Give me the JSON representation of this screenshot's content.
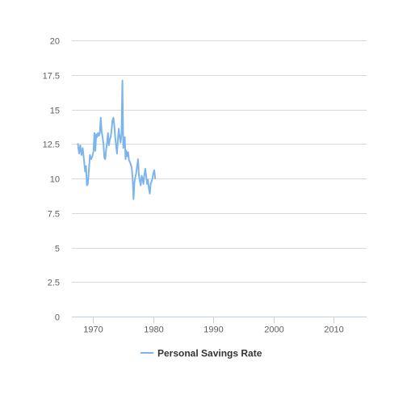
{
  "chart_data": {
    "type": "line",
    "title": "",
    "xlabel": "",
    "ylabel": "",
    "xlim": [
      1966.5,
      2015.5
    ],
    "ylim": [
      0,
      20
    ],
    "yticks": [
      0,
      2.5,
      5,
      7.5,
      10,
      12.5,
      15,
      17.5,
      20
    ],
    "ytick_labels": [
      "0",
      "2.5",
      "5",
      "7.5",
      "10",
      "12.5",
      "15",
      "17.5",
      "20"
    ],
    "xticks": [
      1970,
      1980,
      1990,
      2000,
      2010
    ],
    "xtick_labels": [
      "1970",
      "1980",
      "1990",
      "2000",
      "2010"
    ],
    "grid": true,
    "legend_position": "bottom-center",
    "series": [
      {
        "name": "Personal Savings Rate",
        "color": "#7cb5ec",
        "x": [
          1967.5,
          1967.7,
          1967.9,
          1968.1,
          1968.3,
          1968.5,
          1968.7,
          1968.85,
          1969.0,
          1969.15,
          1969.3,
          1969.5,
          1969.7,
          1969.9,
          1970.1,
          1970.25,
          1970.4,
          1970.55,
          1970.7,
          1970.85,
          1971.0,
          1971.15,
          1971.3,
          1971.45,
          1971.6,
          1971.75,
          1971.9,
          1972.05,
          1972.2,
          1972.35,
          1972.5,
          1972.65,
          1972.8,
          1972.95,
          1973.1,
          1973.25,
          1973.4,
          1973.55,
          1973.7,
          1973.85,
          1974.0,
          1974.15,
          1974.3,
          1974.45,
          1974.6,
          1974.75,
          1974.9,
          1975.05,
          1975.2,
          1975.3,
          1975.42,
          1975.55,
          1975.7,
          1975.85,
          1976.0,
          1976.15,
          1976.3,
          1976.45,
          1976.6,
          1976.75,
          1976.9,
          1977.05,
          1977.2,
          1977.35,
          1977.5,
          1977.65,
          1977.8,
          1977.95,
          1978.1,
          1978.25,
          1978.4,
          1978.55,
          1978.7,
          1978.85,
          1979.0,
          1979.15,
          1979.3,
          1979.45,
          1979.6,
          1979.75,
          1979.9,
          1980.05,
          1980.2,
          1980.35
        ],
        "values": [
          12.5,
          11.8,
          12.4,
          11.7,
          12.2,
          11.4,
          10.5,
          10.9,
          9.5,
          9.6,
          10.4,
          11.7,
          11.4,
          11.6,
          12.0,
          13.3,
          12.0,
          13.2,
          13.0,
          13.3,
          13.1,
          13.3,
          14.4,
          13.4,
          13.0,
          12.5,
          11.5,
          11.4,
          12.1,
          12.6,
          13.3,
          12.4,
          12.8,
          13.0,
          13.5,
          14.2,
          14.4,
          13.9,
          13.0,
          12.4,
          11.8,
          12.8,
          13.6,
          13.0,
          12.6,
          13.2,
          17.1,
          12.2,
          12.6,
          13.0,
          11.4,
          12.0,
          11.6,
          11.9,
          11.3,
          11.2,
          11.0,
          10.8,
          10.0,
          8.5,
          9.7,
          10.1,
          10.4,
          10.9,
          11.4,
          10.2,
          9.8,
          9.5,
          10.2,
          10.0,
          9.6,
          10.3,
          10.7,
          10.2,
          9.6,
          9.9,
          9.3,
          8.9,
          9.6,
          9.8,
          10.0,
          10.4,
          10.6,
          10.0
        ]
      }
    ]
  }
}
